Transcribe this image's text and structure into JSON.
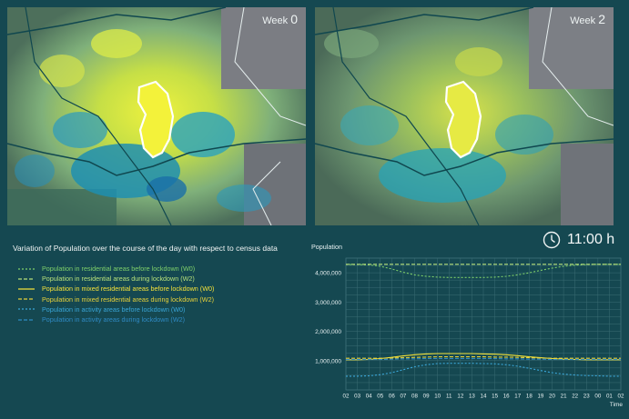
{
  "maps": [
    {
      "week_prefix": "Week",
      "week_number": "0"
    },
    {
      "week_prefix": "Week",
      "week_number": "2"
    }
  ],
  "panel_title": "Variation of Population over the course of the day with respect to census data",
  "legend": [
    {
      "label": "Population in residential areas  before lockdown (W0)",
      "color": "#7fd06a",
      "dash": "2,2"
    },
    {
      "label": "Population in residential areas  during lockdown (W2)",
      "color": "#b7e07a",
      "dash": "4,2"
    },
    {
      "label": "Population in mixed residential areas before lockdown (W0)",
      "color": "#f4e23a",
      "dash": ""
    },
    {
      "label": "Population in mixed residential areas during lockdown (W2)",
      "color": "#e8d23a",
      "dash": "4,2"
    },
    {
      "label": "Population in activity areas before lockdown (W0)",
      "color": "#3aa6d8",
      "dash": "2,2"
    },
    {
      "label": "Population in activity areas during lockdown (W2)",
      "color": "#2f8ac4",
      "dash": "4,2"
    }
  ],
  "clock": {
    "icon": "clock-icon",
    "time": "11:00 h"
  },
  "chart_data": {
    "type": "line",
    "ylabel": "Population",
    "xlabel": "Time",
    "ylim": [
      0,
      4500000
    ],
    "y_ticks": [
      "1,000,000",
      "2,000,000",
      "3,000,000",
      "4,000,000"
    ],
    "y_tick_values": [
      1000000,
      2000000,
      3000000,
      4000000
    ],
    "categories": [
      "02",
      "03",
      "04",
      "05",
      "06",
      "07",
      "08",
      "09",
      "10",
      "11",
      "12",
      "13",
      "14",
      "15",
      "16",
      "17",
      "18",
      "19",
      "20",
      "21",
      "22",
      "23",
      "00",
      "01",
      "02"
    ],
    "series": [
      {
        "name": "Population in residential areas  before lockdown (W0)",
        "color": "#7fd06a",
        "dash": "2,2",
        "values": [
          4280000,
          4280000,
          4270000,
          4220000,
          4130000,
          4020000,
          3930000,
          3880000,
          3850000,
          3840000,
          3840000,
          3840000,
          3840000,
          3850000,
          3880000,
          3930000,
          4000000,
          4080000,
          4160000,
          4220000,
          4260000,
          4280000,
          4290000,
          4290000,
          4290000
        ]
      },
      {
        "name": "Population in residential areas  during lockdown (W2)",
        "color": "#b7e07a",
        "dash": "4,2",
        "values": [
          4290000,
          4290000,
          4290000,
          4290000,
          4290000,
          4290000,
          4290000,
          4290000,
          4290000,
          4290000,
          4290000,
          4290000,
          4290000,
          4290000,
          4290000,
          4290000,
          4290000,
          4290000,
          4290000,
          4290000,
          4290000,
          4290000,
          4290000,
          4290000,
          4290000
        ]
      },
      {
        "name": "Population in mixed residential areas before lockdown (W0)",
        "color": "#f4e23a",
        "dash": "",
        "values": [
          1030000,
          1030000,
          1040000,
          1070000,
          1110000,
          1160000,
          1200000,
          1230000,
          1240000,
          1240000,
          1240000,
          1240000,
          1230000,
          1220000,
          1200000,
          1170000,
          1130000,
          1100000,
          1070000,
          1050000,
          1040000,
          1030000,
          1030000,
          1030000,
          1030000
        ]
      },
      {
        "name": "Population in mixed residential areas during lockdown (W2)",
        "color": "#e8d23a",
        "dash": "4,2",
        "values": [
          1080000,
          1080000,
          1080000,
          1080000,
          1090000,
          1100000,
          1110000,
          1120000,
          1130000,
          1130000,
          1130000,
          1130000,
          1130000,
          1120000,
          1120000,
          1110000,
          1100000,
          1090000,
          1080000,
          1080000,
          1080000,
          1080000,
          1080000,
          1080000,
          1080000
        ]
      },
      {
        "name": "Population in activity areas before lockdown (W0)",
        "color": "#3aa6d8",
        "dash": "2,2",
        "values": [
          470000,
          470000,
          480000,
          520000,
          590000,
          690000,
          790000,
          860000,
          900000,
          910000,
          910000,
          910000,
          900000,
          890000,
          860000,
          810000,
          740000,
          660000,
          590000,
          540000,
          510000,
          490000,
          480000,
          470000,
          470000
        ]
      },
      {
        "name": "Population in activity areas during lockdown (W2)",
        "color": "#2f8ac4",
        "dash": "4,2",
        "values": [
          1040000,
          1040000,
          1040000,
          1040000,
          1050000,
          1060000,
          1060000,
          1070000,
          1070000,
          1070000,
          1070000,
          1070000,
          1070000,
          1070000,
          1060000,
          1060000,
          1050000,
          1050000,
          1040000,
          1040000,
          1040000,
          1040000,
          1040000,
          1040000,
          1040000
        ]
      }
    ]
  }
}
